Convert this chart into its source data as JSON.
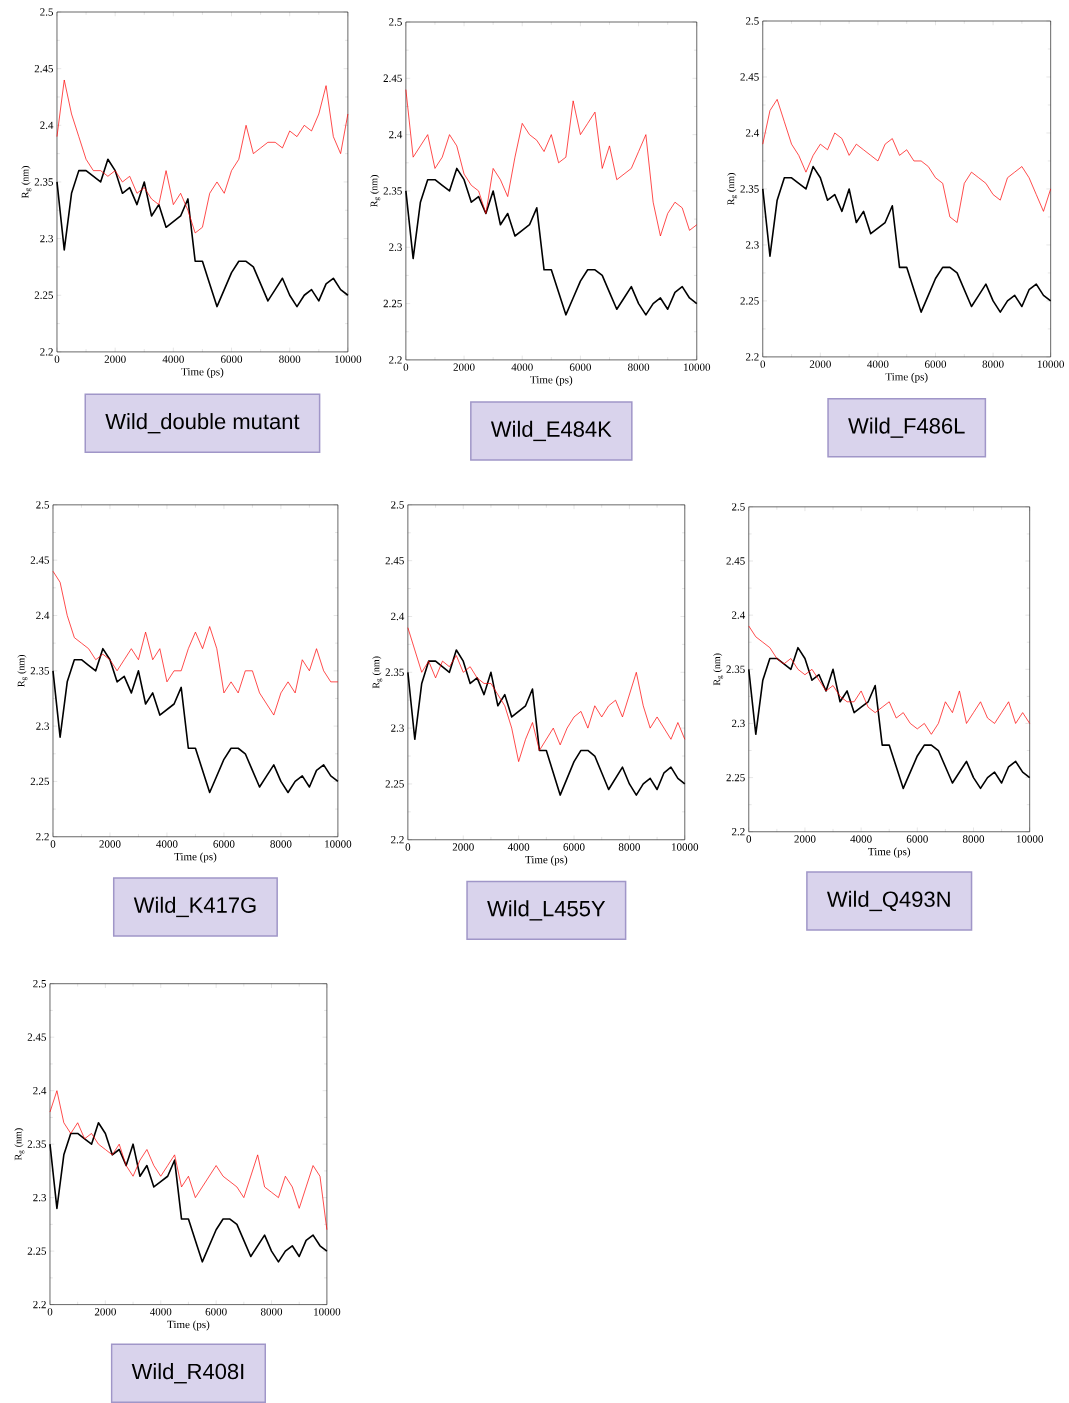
{
  "chart_data": [
    {
      "type": "line",
      "title": "Wild_double mutant",
      "xlabel": "Time (ps)",
      "ylabel": "R$_{g}$ (nm)",
      "xlim": [
        0,
        10000
      ],
      "ylim": [
        2.2,
        2.5
      ],
      "xticks": [
        0,
        2000,
        4000,
        6000,
        8000,
        10000
      ],
      "yticks": [
        2.2,
        2.25,
        2.3,
        2.35,
        2.4,
        2.45,
        2.5
      ],
      "x": [
        0,
        250,
        500,
        750,
        1000,
        1250,
        1500,
        1750,
        2000,
        2250,
        2500,
        2750,
        3000,
        3250,
        3500,
        3750,
        4000,
        4250,
        4500,
        4750,
        5000,
        5250,
        5500,
        5750,
        6000,
        6250,
        6500,
        6750,
        7000,
        7250,
        7500,
        7750,
        8000,
        8250,
        8500,
        8750,
        9000,
        9250,
        9500,
        9750,
        10000
      ],
      "series": [
        {
          "color": "#000000",
          "values": [
            2.35,
            2.29,
            2.34,
            2.36,
            2.36,
            2.355,
            2.35,
            2.37,
            2.36,
            2.34,
            2.345,
            2.33,
            2.35,
            2.32,
            2.33,
            2.31,
            2.315,
            2.32,
            2.335,
            2.28,
            2.28,
            2.26,
            2.24,
            2.255,
            2.27,
            2.28,
            2.28,
            2.275,
            2.26,
            2.245,
            2.255,
            2.265,
            2.25,
            2.24,
            2.25,
            2.255,
            2.245,
            2.26,
            2.265,
            2.255,
            2.25
          ]
        },
        {
          "color": "#ff0000",
          "values": [
            2.39,
            2.44,
            2.41,
            2.39,
            2.37,
            2.36,
            2.36,
            2.355,
            2.36,
            2.35,
            2.355,
            2.34,
            2.345,
            2.335,
            2.33,
            2.36,
            2.33,
            2.34,
            2.325,
            2.305,
            2.31,
            2.34,
            2.35,
            2.34,
            2.36,
            2.37,
            2.4,
            2.375,
            2.38,
            2.385,
            2.385,
            2.38,
            2.395,
            2.39,
            2.4,
            2.395,
            2.41,
            2.435,
            2.39,
            2.375,
            2.41
          ]
        }
      ]
    },
    {
      "type": "line",
      "title": "Wild_E484K",
      "xlabel": "Time (ps)",
      "ylabel": "R$_{g}$ (nm)",
      "xlim": [
        0,
        10000
      ],
      "ylim": [
        2.2,
        2.5
      ],
      "xticks": [
        0,
        2000,
        4000,
        6000,
        8000,
        10000
      ],
      "yticks": [
        2.2,
        2.25,
        2.3,
        2.35,
        2.4,
        2.45,
        2.5
      ],
      "x": [
        0,
        250,
        500,
        750,
        1000,
        1250,
        1500,
        1750,
        2000,
        2250,
        2500,
        2750,
        3000,
        3250,
        3500,
        3750,
        4000,
        4250,
        4500,
        4750,
        5000,
        5250,
        5500,
        5750,
        6000,
        6250,
        6500,
        6750,
        7000,
        7250,
        7500,
        7750,
        8000,
        8250,
        8500,
        8750,
        9000,
        9250,
        9500,
        9750,
        10000
      ],
      "series": [
        {
          "color": "#000000",
          "values": [
            2.35,
            2.29,
            2.34,
            2.36,
            2.36,
            2.355,
            2.35,
            2.37,
            2.36,
            2.34,
            2.345,
            2.33,
            2.35,
            2.32,
            2.33,
            2.31,
            2.315,
            2.32,
            2.335,
            2.28,
            2.28,
            2.26,
            2.24,
            2.255,
            2.27,
            2.28,
            2.28,
            2.275,
            2.26,
            2.245,
            2.255,
            2.265,
            2.25,
            2.24,
            2.25,
            2.255,
            2.245,
            2.26,
            2.265,
            2.255,
            2.25
          ]
        },
        {
          "color": "#ff0000",
          "values": [
            2.44,
            2.38,
            2.39,
            2.4,
            2.37,
            2.38,
            2.4,
            2.39,
            2.365,
            2.355,
            2.35,
            2.33,
            2.37,
            2.36,
            2.345,
            2.38,
            2.41,
            2.4,
            2.395,
            2.385,
            2.4,
            2.375,
            2.38,
            2.43,
            2.4,
            2.41,
            2.42,
            2.37,
            2.39,
            2.36,
            2.365,
            2.37,
            2.385,
            2.4,
            2.34,
            2.31,
            2.33,
            2.34,
            2.335,
            2.315,
            2.32
          ]
        }
      ]
    },
    {
      "type": "line",
      "title": "Wild_F486L",
      "xlabel": "Time (ps)",
      "ylabel": "R$_{g}$ (nm)",
      "xlim": [
        0,
        10000
      ],
      "ylim": [
        2.2,
        2.5
      ],
      "xticks": [
        0,
        2000,
        4000,
        6000,
        8000,
        10000
      ],
      "yticks": [
        2.2,
        2.25,
        2.3,
        2.35,
        2.4,
        2.45,
        2.5
      ],
      "x": [
        0,
        250,
        500,
        750,
        1000,
        1250,
        1500,
        1750,
        2000,
        2250,
        2500,
        2750,
        3000,
        3250,
        3500,
        3750,
        4000,
        4250,
        4500,
        4750,
        5000,
        5250,
        5500,
        5750,
        6000,
        6250,
        6500,
        6750,
        7000,
        7250,
        7500,
        7750,
        8000,
        8250,
        8500,
        8750,
        9000,
        9250,
        9500,
        9750,
        10000
      ],
      "series": [
        {
          "color": "#000000",
          "values": [
            2.35,
            2.29,
            2.34,
            2.36,
            2.36,
            2.355,
            2.35,
            2.37,
            2.36,
            2.34,
            2.345,
            2.33,
            2.35,
            2.32,
            2.33,
            2.31,
            2.315,
            2.32,
            2.335,
            2.28,
            2.28,
            2.26,
            2.24,
            2.255,
            2.27,
            2.28,
            2.28,
            2.275,
            2.26,
            2.245,
            2.255,
            2.265,
            2.25,
            2.24,
            2.25,
            2.255,
            2.245,
            2.26,
            2.265,
            2.255,
            2.25
          ]
        },
        {
          "color": "#ff0000",
          "values": [
            2.39,
            2.42,
            2.43,
            2.41,
            2.39,
            2.38,
            2.365,
            2.38,
            2.39,
            2.385,
            2.4,
            2.395,
            2.38,
            2.39,
            2.385,
            2.38,
            2.375,
            2.39,
            2.395,
            2.38,
            2.385,
            2.375,
            2.375,
            2.37,
            2.36,
            2.355,
            2.325,
            2.32,
            2.355,
            2.365,
            2.36,
            2.355,
            2.345,
            2.34,
            2.36,
            2.365,
            2.37,
            2.36,
            2.345,
            2.33,
            2.35
          ]
        }
      ]
    },
    {
      "type": "line",
      "title": "Wild_K417G",
      "xlabel": "Time (ps)",
      "ylabel": "R$_{g}$ (nm)",
      "xlim": [
        0,
        10000
      ],
      "ylim": [
        2.2,
        2.5
      ],
      "xticks": [
        0,
        2000,
        4000,
        6000,
        8000,
        10000
      ],
      "yticks": [
        2.2,
        2.25,
        2.3,
        2.35,
        2.4,
        2.45,
        2.5
      ],
      "x": [
        0,
        250,
        500,
        750,
        1000,
        1250,
        1500,
        1750,
        2000,
        2250,
        2500,
        2750,
        3000,
        3250,
        3500,
        3750,
        4000,
        4250,
        4500,
        4750,
        5000,
        5250,
        5500,
        5750,
        6000,
        6250,
        6500,
        6750,
        7000,
        7250,
        7500,
        7750,
        8000,
        8250,
        8500,
        8750,
        9000,
        9250,
        9500,
        9750,
        10000
      ],
      "series": [
        {
          "color": "#000000",
          "values": [
            2.35,
            2.29,
            2.34,
            2.36,
            2.36,
            2.355,
            2.35,
            2.37,
            2.36,
            2.34,
            2.345,
            2.33,
            2.35,
            2.32,
            2.33,
            2.31,
            2.315,
            2.32,
            2.335,
            2.28,
            2.28,
            2.26,
            2.24,
            2.255,
            2.27,
            2.28,
            2.28,
            2.275,
            2.26,
            2.245,
            2.255,
            2.265,
            2.25,
            2.24,
            2.25,
            2.255,
            2.245,
            2.26,
            2.265,
            2.255,
            2.25
          ]
        },
        {
          "color": "#ff0000",
          "values": [
            2.44,
            2.43,
            2.4,
            2.38,
            2.375,
            2.37,
            2.36,
            2.365,
            2.36,
            2.35,
            2.36,
            2.37,
            2.36,
            2.385,
            2.36,
            2.37,
            2.34,
            2.35,
            2.35,
            2.37,
            2.385,
            2.37,
            2.39,
            2.37,
            2.33,
            2.34,
            2.33,
            2.35,
            2.35,
            2.33,
            2.32,
            2.31,
            2.33,
            2.34,
            2.33,
            2.36,
            2.35,
            2.37,
            2.35,
            2.34,
            2.34
          ]
        }
      ]
    },
    {
      "type": "line",
      "title": "Wild_L455Y",
      "xlabel": "Time (ps)",
      "ylabel": "R$_{g}$ (nm)",
      "xlim": [
        0,
        10000
      ],
      "ylim": [
        2.2,
        2.5
      ],
      "xticks": [
        0,
        2000,
        4000,
        6000,
        8000,
        10000
      ],
      "yticks": [
        2.2,
        2.25,
        2.3,
        2.35,
        2.4,
        2.45,
        2.5
      ],
      "x": [
        0,
        250,
        500,
        750,
        1000,
        1250,
        1500,
        1750,
        2000,
        2250,
        2500,
        2750,
        3000,
        3250,
        3500,
        3750,
        4000,
        4250,
        4500,
        4750,
        5000,
        5250,
        5500,
        5750,
        6000,
        6250,
        6500,
        6750,
        7000,
        7250,
        7500,
        7750,
        8000,
        8250,
        8500,
        8750,
        9000,
        9250,
        9500,
        9750,
        10000
      ],
      "series": [
        {
          "color": "#000000",
          "values": [
            2.35,
            2.29,
            2.34,
            2.36,
            2.36,
            2.355,
            2.35,
            2.37,
            2.36,
            2.34,
            2.345,
            2.33,
            2.35,
            2.32,
            2.33,
            2.31,
            2.315,
            2.32,
            2.335,
            2.28,
            2.28,
            2.26,
            2.24,
            2.255,
            2.27,
            2.28,
            2.28,
            2.275,
            2.26,
            2.245,
            2.255,
            2.265,
            2.25,
            2.24,
            2.25,
            2.255,
            2.245,
            2.26,
            2.265,
            2.255,
            2.25
          ]
        },
        {
          "color": "#ff0000",
          "values": [
            2.39,
            2.37,
            2.35,
            2.36,
            2.345,
            2.36,
            2.355,
            2.365,
            2.35,
            2.355,
            2.345,
            2.34,
            2.34,
            2.33,
            2.32,
            2.3,
            2.27,
            2.29,
            2.305,
            2.28,
            2.29,
            2.3,
            2.285,
            2.3,
            2.31,
            2.315,
            2.3,
            2.32,
            2.31,
            2.32,
            2.325,
            2.31,
            2.33,
            2.35,
            2.32,
            2.3,
            2.31,
            2.3,
            2.29,
            2.305,
            2.29
          ]
        }
      ]
    },
    {
      "type": "line",
      "title": "Wild_Q493N",
      "xlabel": "Time (ps)",
      "ylabel": "R$_{g}$ (nm)",
      "xlim": [
        0,
        10000
      ],
      "ylim": [
        2.2,
        2.5
      ],
      "xticks": [
        0,
        2000,
        4000,
        6000,
        8000,
        10000
      ],
      "yticks": [
        2.2,
        2.25,
        2.3,
        2.35,
        2.4,
        2.45,
        2.5
      ],
      "x": [
        0,
        250,
        500,
        750,
        1000,
        1250,
        1500,
        1750,
        2000,
        2250,
        2500,
        2750,
        3000,
        3250,
        3500,
        3750,
        4000,
        4250,
        4500,
        4750,
        5000,
        5250,
        5500,
        5750,
        6000,
        6250,
        6500,
        6750,
        7000,
        7250,
        7500,
        7750,
        8000,
        8250,
        8500,
        8750,
        9000,
        9250,
        9500,
        9750,
        10000
      ],
      "series": [
        {
          "color": "#000000",
          "values": [
            2.35,
            2.29,
            2.34,
            2.36,
            2.36,
            2.355,
            2.35,
            2.37,
            2.36,
            2.34,
            2.345,
            2.33,
            2.35,
            2.32,
            2.33,
            2.31,
            2.315,
            2.32,
            2.335,
            2.28,
            2.28,
            2.26,
            2.24,
            2.255,
            2.27,
            2.28,
            2.28,
            2.275,
            2.26,
            2.245,
            2.255,
            2.265,
            2.25,
            2.24,
            2.25,
            2.255,
            2.245,
            2.26,
            2.265,
            2.255,
            2.25
          ]
        },
        {
          "color": "#ff0000",
          "values": [
            2.39,
            2.38,
            2.375,
            2.37,
            2.36,
            2.355,
            2.36,
            2.35,
            2.345,
            2.35,
            2.34,
            2.33,
            2.335,
            2.325,
            2.32,
            2.32,
            2.33,
            2.315,
            2.31,
            2.315,
            2.32,
            2.305,
            2.31,
            2.3,
            2.295,
            2.3,
            2.29,
            2.3,
            2.32,
            2.31,
            2.33,
            2.3,
            2.31,
            2.32,
            2.305,
            2.3,
            2.31,
            2.32,
            2.3,
            2.31,
            2.3
          ]
        }
      ]
    },
    {
      "type": "line",
      "title": "Wild_R408I",
      "xlabel": "Time (ps)",
      "ylabel": "R$_{g}$ (nm)",
      "xlim": [
        0,
        10000
      ],
      "ylim": [
        2.2,
        2.5
      ],
      "xticks": [
        0,
        2000,
        4000,
        6000,
        8000,
        10000
      ],
      "yticks": [
        2.2,
        2.25,
        2.3,
        2.35,
        2.4,
        2.45,
        2.5
      ],
      "x": [
        0,
        250,
        500,
        750,
        1000,
        1250,
        1500,
        1750,
        2000,
        2250,
        2500,
        2750,
        3000,
        3250,
        3500,
        3750,
        4000,
        4250,
        4500,
        4750,
        5000,
        5250,
        5500,
        5750,
        6000,
        6250,
        6500,
        6750,
        7000,
        7250,
        7500,
        7750,
        8000,
        8250,
        8500,
        8750,
        9000,
        9250,
        9500,
        9750,
        10000
      ],
      "series": [
        {
          "color": "#000000",
          "values": [
            2.35,
            2.29,
            2.34,
            2.36,
            2.36,
            2.355,
            2.35,
            2.37,
            2.36,
            2.34,
            2.345,
            2.33,
            2.35,
            2.32,
            2.33,
            2.31,
            2.315,
            2.32,
            2.335,
            2.28,
            2.28,
            2.26,
            2.24,
            2.255,
            2.27,
            2.28,
            2.28,
            2.275,
            2.26,
            2.245,
            2.255,
            2.265,
            2.25,
            2.24,
            2.25,
            2.255,
            2.245,
            2.26,
            2.265,
            2.255,
            2.25
          ]
        },
        {
          "color": "#ff0000",
          "values": [
            2.38,
            2.4,
            2.37,
            2.36,
            2.37,
            2.355,
            2.36,
            2.35,
            2.345,
            2.34,
            2.35,
            2.33,
            2.32,
            2.335,
            2.345,
            2.33,
            2.32,
            2.33,
            2.34,
            2.31,
            2.32,
            2.3,
            2.31,
            2.32,
            2.33,
            2.32,
            2.315,
            2.31,
            2.3,
            2.32,
            2.34,
            2.31,
            2.305,
            2.3,
            2.32,
            2.31,
            2.29,
            2.31,
            2.33,
            2.32,
            2.27
          ]
        }
      ]
    }
  ]
}
